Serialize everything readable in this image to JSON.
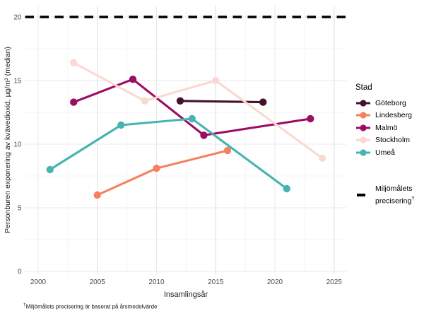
{
  "chart_data": {
    "type": "line",
    "title": "",
    "xlabel": "Insamlingsår",
    "ylabel": "Personburen exponering av kvävedioxid, µg/m³ (median)",
    "x_ticks": [
      2000,
      2005,
      2010,
      2015,
      2020,
      2025
    ],
    "y_ticks": [
      0,
      5,
      10,
      15,
      20
    ],
    "xlim": [
      1999,
      2026
    ],
    "ylim": [
      0,
      20.9
    ],
    "grid": "major and minor, light gray on white",
    "legend_position": "right",
    "legend_title": "Stad",
    "series": [
      {
        "name": "Göteborg",
        "color": "#45122e",
        "points": [
          [
            2012,
            13.4
          ],
          [
            2019,
            13.3
          ]
        ]
      },
      {
        "name": "Lindesberg",
        "color": "#f5815e",
        "points": [
          [
            2005,
            6.0
          ],
          [
            2010,
            8.1
          ],
          [
            2016,
            9.5
          ]
        ]
      },
      {
        "name": "Malmö",
        "color": "#9c0d63",
        "points": [
          [
            2003,
            13.3
          ],
          [
            2008,
            15.1
          ],
          [
            2014,
            10.7
          ],
          [
            2023,
            12.0
          ]
        ]
      },
      {
        "name": "Stockholm",
        "color": "#fad9d3",
        "points": [
          [
            2003,
            16.4
          ],
          [
            2009,
            13.4
          ],
          [
            2015,
            15.0
          ],
          [
            2024,
            8.9
          ]
        ]
      },
      {
        "name": "Umeå",
        "color": "#46b4b1",
        "points": [
          [
            2001,
            8.0
          ],
          [
            2007,
            11.5
          ],
          [
            2013,
            12.0
          ],
          [
            2021,
            6.5
          ]
        ]
      }
    ],
    "reference_line": {
      "value": 20,
      "style": "dashed",
      "color": "#000000",
      "legend_label_line1": "Miljömålets",
      "legend_label_line2": "precisering",
      "dagger": "†"
    },
    "footnote_dagger": "†",
    "footnote_text": "Miljömålets precisering är baserat på årsmedelvärde",
    "colors": {
      "background": "#ffffff",
      "grid_major": "#e8e8e8",
      "grid_minor": "#f4f4f4",
      "tick_text": "#4d4d4d"
    }
  }
}
